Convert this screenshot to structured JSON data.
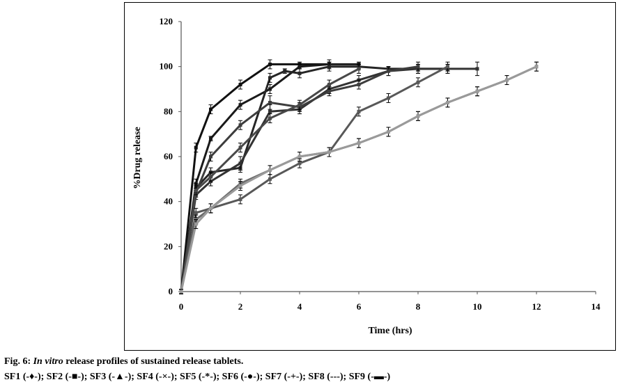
{
  "caption": {
    "prefix": "Fig. 6: ",
    "italic": "In vitro",
    "rest": " release profiles of sustained release tablets."
  },
  "legend_text": "SF1 (-♦-); SF2 (-■-); SF3 (-▲-); SF4 (-×-); SF5 (-*-); SF6 (-●-); SF7 (-+-); SF8 (---); SF9 (-▬-)",
  "chart_data": {
    "type": "line",
    "xlabel": "Time (hrs)",
    "ylabel": "%Drug release",
    "xlim": [
      0,
      14
    ],
    "ylim": [
      0,
      120
    ],
    "xticks": [
      0,
      2,
      4,
      6,
      8,
      10,
      12,
      14
    ],
    "yticks": [
      0,
      20,
      40,
      60,
      80,
      100,
      120
    ],
    "grid": false,
    "error_bars": true,
    "series": [
      {
        "name": "SF1",
        "color": "#111111",
        "x": [
          0,
          0.5,
          1,
          2,
          3,
          4,
          5
        ],
        "y": [
          0,
          64,
          81,
          92,
          101,
          101,
          101
        ],
        "err": [
          1,
          2,
          2,
          2,
          2,
          1,
          2
        ]
      },
      {
        "name": "SF2",
        "color": "#1a1a1a",
        "x": [
          0,
          0.5,
          1,
          2,
          3,
          4,
          5,
          6
        ],
        "y": [
          0,
          48,
          68,
          83,
          90,
          100,
          101,
          101
        ],
        "err": [
          1,
          2,
          1,
          2,
          2,
          1,
          1,
          1
        ]
      },
      {
        "name": "SF3",
        "color": "#262626",
        "x": [
          0,
          0.5,
          1,
          2,
          3,
          3.5,
          4,
          5,
          6,
          7,
          8,
          9
        ],
        "y": [
          0,
          46,
          53,
          55,
          95,
          98,
          97,
          100,
          100,
          99,
          99,
          99
        ],
        "err": [
          1,
          2,
          2,
          2,
          2,
          1,
          2,
          2,
          1,
          1,
          2,
          2
        ]
      },
      {
        "name": "SF4",
        "color": "#333333",
        "x": [
          0,
          0.5,
          1,
          2,
          3,
          4,
          5,
          6,
          7,
          8,
          9,
          10
        ],
        "y": [
          0,
          43,
          49,
          57,
          80,
          81,
          90,
          94,
          98,
          99,
          99,
          99
        ],
        "err": [
          1,
          2,
          2,
          3,
          3,
          2,
          2,
          2,
          2,
          2,
          2,
          3
        ]
      },
      {
        "name": "SF5",
        "color": "#3d3d3d",
        "x": [
          0,
          0.5,
          1,
          2,
          3,
          4,
          5,
          6,
          7,
          8
        ],
        "y": [
          0,
          44,
          60,
          74,
          84,
          82,
          89,
          92,
          98,
          100
        ],
        "err": [
          1,
          2,
          2,
          2,
          3,
          2,
          2,
          2,
          2,
          2
        ]
      },
      {
        "name": "SF6",
        "color": "#484848",
        "x": [
          0,
          0.5,
          1,
          2,
          3,
          4,
          5,
          6
        ],
        "y": [
          0,
          45,
          51,
          64,
          77,
          83,
          92,
          99
        ],
        "err": [
          1,
          2,
          2,
          2,
          2,
          2,
          2,
          2
        ]
      },
      {
        "name": "SF7",
        "color": "#585858",
        "x": [
          0,
          0.5,
          1,
          2,
          3,
          4,
          5,
          6,
          7,
          8,
          9
        ],
        "y": [
          0,
          35,
          37,
          41,
          50,
          57,
          62,
          80,
          86,
          93,
          100
        ],
        "err": [
          1,
          2,
          2,
          2,
          2,
          2,
          2,
          2,
          2,
          2,
          2
        ]
      },
      {
        "name": "SF8",
        "color": "#6a6a6a",
        "x": [
          0,
          0.5,
          1,
          2,
          3,
          4,
          5,
          6,
          7,
          8,
          9,
          10,
          11,
          12
        ],
        "y": [
          0,
          32,
          37,
          48,
          54,
          60,
          62,
          66,
          71,
          78,
          84,
          89,
          94,
          100
        ],
        "err": [
          1,
          2,
          2,
          2,
          2,
          2,
          2,
          2,
          2,
          2,
          2,
          2,
          2,
          2
        ]
      },
      {
        "name": "SF9",
        "color": "#9a9a9a",
        "x": [
          0,
          0.5,
          1,
          2,
          3,
          4,
          5,
          6,
          7,
          8,
          9,
          10,
          11,
          12
        ],
        "y": [
          0,
          30,
          37,
          47,
          54,
          60,
          62,
          66,
          71,
          78,
          84,
          89,
          94,
          100
        ],
        "err": [
          1,
          2,
          2,
          2,
          2,
          2,
          2,
          2,
          2,
          2,
          2,
          2,
          2,
          2
        ]
      }
    ]
  }
}
